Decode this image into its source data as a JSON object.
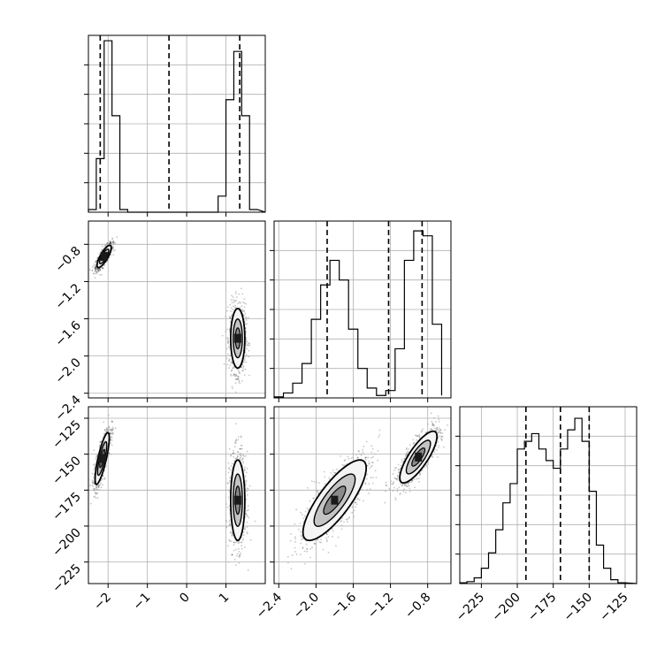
{
  "chart_data": {
    "type": "corner",
    "parameters": [
      {
        "ticks": [
          -2,
          -1,
          0,
          1
        ],
        "tick_labels": [
          "−2",
          "−1",
          "0",
          "1"
        ],
        "range": [
          -2.5,
          2.0
        ],
        "quantiles": [
          -2.2,
          -0.45,
          1.35
        ],
        "hist": {
          "edges": [
            -2.5,
            -2.3,
            -2.1,
            -1.9,
            -1.7,
            -1.5,
            0.8,
            1.0,
            1.2,
            1.4,
            1.6,
            1.8
          ],
          "counts": [
            0.05,
            1.0,
            3.2,
            1.8,
            0.05,
            0,
            0.3,
            2.1,
            3.0,
            1.8,
            0.05
          ]
        },
        "hist_ylim": [
          0,
          3.3
        ]
      },
      {
        "ticks": [
          -2.4,
          -2.0,
          -1.6,
          -1.2,
          -0.8
        ],
        "tick_labels": [
          "−2.4",
          "−2.0",
          "−1.6",
          "−1.2",
          "−0.8"
        ],
        "range": [
          -2.45,
          -0.55
        ],
        "quantiles": [
          -1.88,
          -1.22,
          -0.86
        ],
        "hist": {
          "edges": [
            -2.45,
            -2.35,
            -2.25,
            -2.15,
            -2.05,
            -1.95,
            -1.85,
            -1.75,
            -1.65,
            -1.55,
            -1.45,
            -1.35,
            -1.25,
            -1.15,
            -1.05,
            -0.95,
            -0.85,
            -0.75,
            -0.65
          ],
          "counts": [
            0.02,
            0.1,
            0.3,
            0.7,
            1.6,
            2.3,
            2.8,
            2.4,
            1.4,
            0.6,
            0.2,
            0.05,
            0.15,
            1.0,
            2.8,
            3.4,
            3.3,
            1.5,
            0.05
          ]
        },
        "hist_ylim": [
          0,
          3.6
        ]
      },
      {
        "ticks": [
          -225,
          -200,
          -175,
          -150,
          -125
        ],
        "tick_labels": [
          "−225",
          "−200",
          "−175",
          "−150",
          "−125"
        ],
        "range": [
          -240,
          -117
        ],
        "quantiles": [
          -194,
          -170,
          -150
        ],
        "hist": {
          "edges": [
            -240,
            -235,
            -230,
            -225,
            -220,
            -215,
            -210,
            -205,
            -200,
            -195,
            -190,
            -185,
            -180,
            -175,
            -170,
            -165,
            -160,
            -155,
            -150,
            -145,
            -140,
            -135,
            -130,
            -125
          ],
          "counts": [
            0.02,
            0.05,
            0.15,
            0.4,
            0.8,
            1.4,
            2.1,
            2.6,
            3.5,
            3.7,
            3.9,
            3.5,
            3.2,
            3.0,
            3.5,
            4.0,
            4.3,
            3.7,
            2.4,
            1.0,
            0.4,
            0.1,
            0.02
          ]
        },
        "hist_ylim": [
          0,
          4.6
        ]
      }
    ],
    "pairs": [
      {
        "x_param": 0,
        "y_param": 1,
        "clusters": [
          {
            "cx": -2.1,
            "cy": -0.93,
            "sx": 0.09,
            "sy": 0.06,
            "rho": 0.8
          },
          {
            "cx": 1.3,
            "cy": -1.81,
            "sx": 0.09,
            "sy": 0.16,
            "rho": 0.0
          }
        ]
      },
      {
        "x_param": 0,
        "y_param": 2,
        "clusters": [
          {
            "cx": -2.15,
            "cy": -153,
            "sx": 0.09,
            "sy": 9,
            "rho": 0.8
          },
          {
            "cx": 1.3,
            "cy": -182,
            "sx": 0.09,
            "sy": 14,
            "rho": 0.0
          }
        ]
      },
      {
        "x_param": 1,
        "y_param": 2,
        "clusters": [
          {
            "cx": -1.8,
            "cy": -182,
            "sx": 0.17,
            "sy": 14,
            "rho": 0.8
          },
          {
            "cx": -0.9,
            "cy": -152,
            "sx": 0.1,
            "sy": 9,
            "rho": 0.8
          }
        ]
      }
    ],
    "grid": true,
    "title": "",
    "axis_labels": [
      "",
      "",
      ""
    ]
  }
}
